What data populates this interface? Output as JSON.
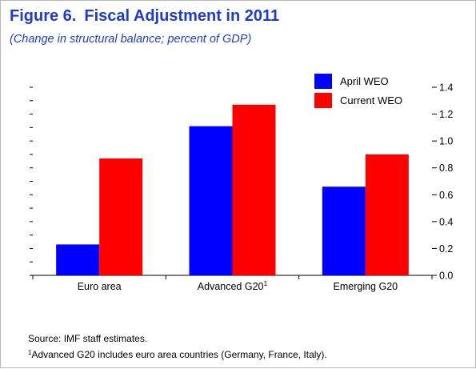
{
  "figure": {
    "label": "Figure 6.",
    "title": "Fiscal Adjustment in 2011",
    "subtitle": "(Change in structural balance; percent of GDP)"
  },
  "chart_data": {
    "type": "bar",
    "categories": [
      "Euro area",
      "Advanced G20",
      "Emerging G20"
    ],
    "category_footnotes": [
      "",
      "1",
      ""
    ],
    "series": [
      {
        "name": "April WEO",
        "values": [
          0.23,
          1.11,
          0.66
        ],
        "color": "#0000ff"
      },
      {
        "name": "Current WEO",
        "values": [
          0.87,
          1.27,
          0.9
        ],
        "color": "#ff0000"
      }
    ],
    "ylim": [
      0,
      1.4
    ],
    "yticks": [
      0,
      0.2,
      0.4,
      0.6,
      0.8,
      1.0,
      1.2,
      1.4
    ],
    "ytick_labels": [
      "0.0",
      "0.2",
      "0.4",
      "0.6",
      "0.8",
      "1.0",
      "1.2",
      "1.4"
    ],
    "xlabel": "",
    "ylabel": "",
    "grid": false,
    "legend_position": "top-right",
    "axis": "right"
  },
  "notes": {
    "source": "Source: IMF staff estimates.",
    "footnote_mark": "1",
    "footnote_text": "Advanced G20 includes euro area countries (Germany, France, Italy)."
  }
}
